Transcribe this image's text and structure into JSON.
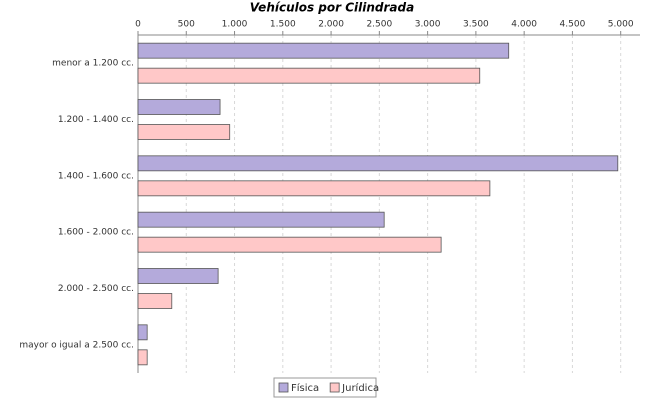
{
  "chart_data": {
    "type": "hbar",
    "title": "Vehículos por Cilindrada",
    "categories": [
      "menor a 1.200 cc.",
      "1.200 - 1.400 cc.",
      "1.400 - 1.600 cc.",
      "1.600 - 2.000 cc.",
      "2.000 - 2.500 cc.",
      "mayor o igual a 2.500 cc."
    ],
    "series": [
      {
        "name": "Física",
        "color": "#b4aadb",
        "values": [
          3840,
          850,
          4970,
          2550,
          830,
          95
        ]
      },
      {
        "name": "Jurídica",
        "color": "#ffc8c8",
        "values": [
          3540,
          950,
          3645,
          3140,
          350,
          95
        ]
      }
    ],
    "xlim": [
      0,
      5200
    ],
    "xticks": [
      0,
      500,
      {
        "value": 1000,
        "label": "1.000"
      },
      {
        "value": 1500,
        "label": "1.500"
      },
      {
        "value": 2000,
        "label": "2.000"
      },
      {
        "value": 2500,
        "label": "2.500"
      },
      {
        "value": 3000,
        "label": "3.000"
      },
      {
        "value": 3500,
        "label": "3.500"
      },
      {
        "value": 4000,
        "label": "4.000"
      },
      {
        "value": 4500,
        "label": "4.500"
      },
      {
        "value": 5000,
        "label": "5.000"
      }
    ],
    "grid": true,
    "legend": "bottom"
  }
}
